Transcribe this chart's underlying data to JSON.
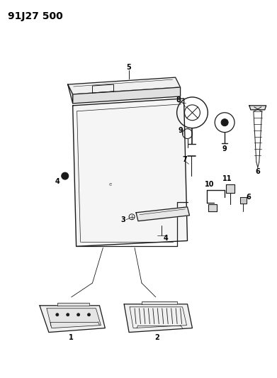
{
  "title": "91J27 500",
  "bg_color": "#ffffff",
  "line_color": "#1a1a1a",
  "title_fontsize": 10,
  "label_fontsize": 7,
  "fig_w": 3.91,
  "fig_h": 5.33,
  "dpi": 100
}
